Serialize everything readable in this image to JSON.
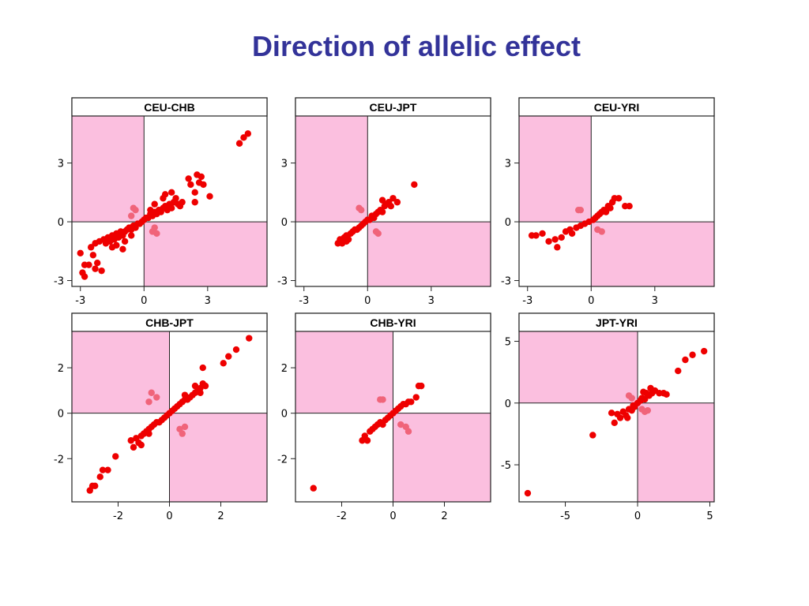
{
  "slide": {
    "title": "Direction of allelic effect",
    "title_color": "#333399"
  },
  "style": {
    "point_color": "#ee0000",
    "outlier_color": "#f0647a",
    "quadrant_fill": "#fbbfdf",
    "frame_color": "#222222"
  },
  "chart_data": [
    {
      "type": "scatter",
      "title": "CEU-CHB",
      "xlim": [
        -3.4,
        5.8
      ],
      "ylim": [
        -3.3,
        5.4
      ],
      "xticks": [
        "-3",
        "0",
        "3"
      ],
      "yticks": [
        "-3",
        "0",
        "3"
      ],
      "x_tick_values": [
        -3,
        0,
        3
      ],
      "y_tick_values": [
        -3,
        0,
        3
      ],
      "shaded_quadrants": [
        "top-left",
        "bottom-right"
      ],
      "points": [
        [
          -3.0,
          -1.6
        ],
        [
          -2.9,
          -2.6
        ],
        [
          -2.8,
          -2.2
        ],
        [
          -2.8,
          -2.8
        ],
        [
          -2.6,
          -2.2
        ],
        [
          -2.5,
          -1.3
        ],
        [
          -2.4,
          -1.7
        ],
        [
          -2.3,
          -1.1
        ],
        [
          -2.3,
          -2.4
        ],
        [
          -2.2,
          -2.1
        ],
        [
          -2.1,
          -1.0
        ],
        [
          -2.0,
          -2.5
        ],
        [
          -1.9,
          -0.9
        ],
        [
          -1.8,
          -1.1
        ],
        [
          -1.7,
          -0.8
        ],
        [
          -1.6,
          -1.0
        ],
        [
          -1.5,
          -0.7
        ],
        [
          -1.4,
          -0.9
        ],
        [
          -1.3,
          -0.6
        ],
        [
          -1.2,
          -0.8
        ],
        [
          -1.1,
          -0.5
        ],
        [
          -1.0,
          -0.7
        ],
        [
          -0.9,
          -0.5
        ],
        [
          -0.8,
          -0.4
        ],
        [
          -0.7,
          -0.3
        ],
        [
          -0.6,
          -0.4
        ],
        [
          -0.5,
          -0.2
        ],
        [
          -0.4,
          -0.3
        ],
        [
          -0.3,
          -0.1
        ],
        [
          -0.2,
          -0.1
        ],
        [
          -0.1,
          0.0
        ],
        [
          0.0,
          0.1
        ],
        [
          0.1,
          0.2
        ],
        [
          0.2,
          0.2
        ],
        [
          0.3,
          0.4
        ],
        [
          0.4,
          0.3
        ],
        [
          0.5,
          0.5
        ],
        [
          0.6,
          0.4
        ],
        [
          0.7,
          0.6
        ],
        [
          0.8,
          0.5
        ],
        [
          0.9,
          0.7
        ],
        [
          1.0,
          0.8
        ],
        [
          1.1,
          0.6
        ],
        [
          1.2,
          0.9
        ],
        [
          1.3,
          0.7
        ],
        [
          1.4,
          1.0
        ],
        [
          1.5,
          1.2
        ],
        [
          1.6,
          0.9
        ],
        [
          1.7,
          0.8
        ],
        [
          1.8,
          1.0
        ],
        [
          2.1,
          2.2
        ],
        [
          2.2,
          1.9
        ],
        [
          2.4,
          1.5
        ],
        [
          2.5,
          2.4
        ],
        [
          2.6,
          2.0
        ],
        [
          2.7,
          2.3
        ],
        [
          2.8,
          1.9
        ],
        [
          3.1,
          1.3
        ],
        [
          4.5,
          4.0
        ],
        [
          4.7,
          4.3
        ],
        [
          4.9,
          4.5
        ],
        [
          -1.3,
          -1.2
        ],
        [
          -0.9,
          -1.0
        ],
        [
          1.0,
          1.4
        ],
        [
          0.5,
          0.9
        ],
        [
          -1.5,
          -1.3
        ],
        [
          -1.0,
          -1.4
        ],
        [
          -0.6,
          -0.7
        ],
        [
          0.3,
          0.6
        ],
        [
          0.9,
          1.2
        ],
        [
          1.3,
          1.5
        ],
        [
          2.4,
          1.0
        ]
      ],
      "outliers": [
        [
          -0.5,
          0.7
        ],
        [
          -0.4,
          0.6
        ],
        [
          -0.6,
          0.3
        ],
        [
          0.4,
          -0.5
        ],
        [
          0.6,
          -0.6
        ],
        [
          0.5,
          -0.3
        ]
      ]
    },
    {
      "type": "scatter",
      "title": "CEU-JPT",
      "xlim": [
        -3.4,
        5.8
      ],
      "ylim": [
        -3.3,
        5.4
      ],
      "xticks": [
        "-3",
        "0",
        "3"
      ],
      "yticks": [
        "-3",
        "0",
        "3"
      ],
      "x_tick_values": [
        -3,
        0,
        3
      ],
      "y_tick_values": [
        -3,
        0,
        3
      ],
      "shaded_quadrants": [
        "top-left",
        "bottom-right"
      ],
      "points": [
        [
          -1.4,
          -1.1
        ],
        [
          -1.3,
          -0.9
        ],
        [
          -1.2,
          -1.1
        ],
        [
          -1.1,
          -0.8
        ],
        [
          -1.0,
          -0.7
        ],
        [
          -0.9,
          -0.9
        ],
        [
          -0.8,
          -0.6
        ],
        [
          -0.7,
          -0.5
        ],
        [
          -0.6,
          -0.4
        ],
        [
          -0.5,
          -0.4
        ],
        [
          -0.4,
          -0.3
        ],
        [
          -0.3,
          -0.2
        ],
        [
          -0.2,
          -0.1
        ],
        [
          -0.1,
          0.0
        ],
        [
          0.0,
          0.1
        ],
        [
          0.1,
          0.1
        ],
        [
          0.2,
          0.3
        ],
        [
          0.3,
          0.2
        ],
        [
          0.4,
          0.4
        ],
        [
          0.5,
          0.5
        ],
        [
          0.6,
          0.6
        ],
        [
          0.7,
          0.5
        ],
        [
          0.8,
          0.8
        ],
        [
          0.9,
          0.9
        ],
        [
          1.0,
          1.0
        ],
        [
          1.1,
          0.8
        ],
        [
          1.2,
          1.2
        ],
        [
          1.4,
          1.0
        ],
        [
          2.2,
          1.9
        ],
        [
          -1.0,
          -1.0
        ],
        [
          0.7,
          1.1
        ]
      ],
      "outliers": [
        [
          -0.4,
          0.7
        ],
        [
          -0.3,
          0.6
        ],
        [
          0.4,
          -0.5
        ],
        [
          0.5,
          -0.6
        ]
      ]
    },
    {
      "type": "scatter",
      "title": "CEU-YRI",
      "xlim": [
        -3.4,
        5.8
      ],
      "ylim": [
        -3.3,
        5.4
      ],
      "xticks": [
        "-3",
        "0",
        "3"
      ],
      "yticks": [
        "-3",
        "0",
        "3"
      ],
      "x_tick_values": [
        -3,
        0,
        3
      ],
      "y_tick_values": [
        -3,
        0,
        3
      ],
      "shaded_quadrants": [
        "top-left",
        "bottom-right"
      ],
      "points": [
        [
          -2.8,
          -0.7
        ],
        [
          -2.6,
          -0.7
        ],
        [
          -2.3,
          -0.6
        ],
        [
          -2.0,
          -1.0
        ],
        [
          -1.7,
          -0.9
        ],
        [
          -1.6,
          -1.3
        ],
        [
          -1.4,
          -0.8
        ],
        [
          -1.2,
          -0.5
        ],
        [
          -1.0,
          -0.4
        ],
        [
          -0.9,
          -0.6
        ],
        [
          -0.7,
          -0.3
        ],
        [
          -0.5,
          -0.2
        ],
        [
          -0.3,
          -0.1
        ],
        [
          -0.1,
          0.0
        ],
        [
          0.1,
          0.1
        ],
        [
          0.2,
          0.2
        ],
        [
          0.3,
          0.3
        ],
        [
          0.4,
          0.4
        ],
        [
          0.5,
          0.5
        ],
        [
          0.6,
          0.6
        ],
        [
          0.7,
          0.5
        ],
        [
          0.8,
          0.8
        ],
        [
          0.9,
          0.7
        ],
        [
          1.0,
          1.0
        ],
        [
          1.1,
          1.2
        ],
        [
          1.3,
          1.2
        ],
        [
          1.6,
          0.8
        ],
        [
          1.8,
          0.8
        ]
      ],
      "outliers": [
        [
          -0.6,
          0.6
        ],
        [
          -0.5,
          0.6
        ],
        [
          0.3,
          -0.4
        ],
        [
          0.5,
          -0.5
        ]
      ]
    },
    {
      "type": "scatter",
      "title": "CHB-JPT",
      "xlim": [
        -3.8,
        3.8
      ],
      "ylim": [
        -3.9,
        3.6
      ],
      "xticks": [
        "-2",
        "0",
        "2"
      ],
      "yticks": [
        "-2",
        "0",
        "2"
      ],
      "x_tick_values": [
        -2,
        0,
        2
      ],
      "y_tick_values": [
        -2,
        0,
        2
      ],
      "shaded_quadrants": [
        "top-left",
        "bottom-right"
      ],
      "points": [
        [
          -3.1,
          -3.4
        ],
        [
          -3.0,
          -3.2
        ],
        [
          -2.9,
          -3.2
        ],
        [
          -2.7,
          -2.8
        ],
        [
          -2.6,
          -2.5
        ],
        [
          -2.4,
          -2.5
        ],
        [
          -2.1,
          -1.9
        ],
        [
          -1.5,
          -1.2
        ],
        [
          -1.4,
          -1.5
        ],
        [
          -1.3,
          -1.1
        ],
        [
          -1.2,
          -1.3
        ],
        [
          -1.1,
          -1.0
        ],
        [
          -1.0,
          -0.9
        ],
        [
          -0.9,
          -0.8
        ],
        [
          -0.8,
          -0.7
        ],
        [
          -0.7,
          -0.6
        ],
        [
          -0.6,
          -0.5
        ],
        [
          -0.5,
          -0.4
        ],
        [
          -0.4,
          -0.4
        ],
        [
          -0.3,
          -0.3
        ],
        [
          -0.2,
          -0.2
        ],
        [
          -0.1,
          -0.1
        ],
        [
          0.0,
          0.0
        ],
        [
          0.1,
          0.1
        ],
        [
          0.2,
          0.2
        ],
        [
          0.3,
          0.3
        ],
        [
          0.4,
          0.4
        ],
        [
          0.5,
          0.5
        ],
        [
          0.6,
          0.6
        ],
        [
          0.7,
          0.6
        ],
        [
          0.8,
          0.7
        ],
        [
          0.9,
          0.8
        ],
        [
          1.0,
          0.9
        ],
        [
          1.1,
          1.0
        ],
        [
          1.2,
          1.1
        ],
        [
          1.3,
          1.3
        ],
        [
          1.4,
          1.2
        ],
        [
          1.3,
          2.0
        ],
        [
          2.1,
          2.2
        ],
        [
          2.3,
          2.5
        ],
        [
          2.6,
          2.8
        ],
        [
          3.1,
          3.3
        ],
        [
          -1.1,
          -1.4
        ],
        [
          -0.8,
          -0.9
        ],
        [
          0.6,
          0.8
        ],
        [
          1.0,
          1.2
        ],
        [
          1.2,
          0.9
        ]
      ],
      "outliers": [
        [
          -0.7,
          0.9
        ],
        [
          -0.5,
          0.7
        ],
        [
          -0.8,
          0.5
        ],
        [
          0.4,
          -0.7
        ],
        [
          0.6,
          -0.6
        ],
        [
          0.5,
          -0.9
        ]
      ]
    },
    {
      "type": "scatter",
      "title": "CHB-YRI",
      "xlim": [
        -3.8,
        3.8
      ],
      "ylim": [
        -3.9,
        3.6
      ],
      "xticks": [
        "-2",
        "0",
        "2"
      ],
      "yticks": [
        "-2",
        "0",
        "2"
      ],
      "x_tick_values": [
        -2,
        0,
        2
      ],
      "y_tick_values": [
        -2,
        0,
        2
      ],
      "shaded_quadrants": [
        "top-left",
        "bottom-right"
      ],
      "points": [
        [
          -3.1,
          -3.3
        ],
        [
          -1.2,
          -1.2
        ],
        [
          -1.1,
          -1.0
        ],
        [
          -1.0,
          -1.2
        ],
        [
          -0.9,
          -0.8
        ],
        [
          -0.8,
          -0.7
        ],
        [
          -0.7,
          -0.6
        ],
        [
          -0.6,
          -0.5
        ],
        [
          -0.5,
          -0.4
        ],
        [
          -0.4,
          -0.5
        ],
        [
          -0.3,
          -0.3
        ],
        [
          -0.2,
          -0.2
        ],
        [
          -0.1,
          -0.1
        ],
        [
          0.0,
          0.0
        ],
        [
          0.1,
          0.1
        ],
        [
          0.2,
          0.2
        ],
        [
          0.3,
          0.3
        ],
        [
          0.4,
          0.4
        ],
        [
          0.5,
          0.4
        ],
        [
          0.6,
          0.5
        ],
        [
          0.7,
          0.5
        ],
        [
          0.9,
          0.7
        ],
        [
          1.0,
          1.2
        ],
        [
          1.1,
          1.2
        ]
      ],
      "outliers": [
        [
          -0.5,
          0.6
        ],
        [
          -0.4,
          0.6
        ],
        [
          0.3,
          -0.5
        ],
        [
          0.5,
          -0.6
        ],
        [
          0.6,
          -0.8
        ]
      ]
    },
    {
      "type": "scatter",
      "title": "JPT-YRI",
      "xlim": [
        -8.2,
        5.3
      ],
      "ylim": [
        -8.0,
        5.8
      ],
      "xticks": [
        "-5",
        "0",
        "5"
      ],
      "yticks": [
        "-5",
        "0",
        "5"
      ],
      "x_tick_values": [
        -5,
        0,
        5
      ],
      "y_tick_values": [
        -5,
        0,
        5
      ],
      "shaded_quadrants": [
        "top-left",
        "bottom-right"
      ],
      "points": [
        [
          -7.6,
          -7.3
        ],
        [
          -3.1,
          -2.6
        ],
        [
          -1.8,
          -0.8
        ],
        [
          -1.6,
          -1.6
        ],
        [
          -1.4,
          -0.9
        ],
        [
          -1.2,
          -1.2
        ],
        [
          -1.0,
          -0.7
        ],
        [
          -0.8,
          -1.0
        ],
        [
          -0.6,
          -0.5
        ],
        [
          -0.4,
          -0.6
        ],
        [
          -0.3,
          -0.2
        ],
        [
          -0.2,
          -0.3
        ],
        [
          0.0,
          0.0
        ],
        [
          0.2,
          0.2
        ],
        [
          0.3,
          0.4
        ],
        [
          0.5,
          0.3
        ],
        [
          0.6,
          0.8
        ],
        [
          0.8,
          0.6
        ],
        [
          0.9,
          1.2
        ],
        [
          1.0,
          0.8
        ],
        [
          1.2,
          1.0
        ],
        [
          1.5,
          0.8
        ],
        [
          1.8,
          0.8
        ],
        [
          2.0,
          0.7
        ],
        [
          2.8,
          2.6
        ],
        [
          3.3,
          3.5
        ],
        [
          3.8,
          3.9
        ],
        [
          4.6,
          4.2
        ],
        [
          -0.7,
          -1.2
        ],
        [
          0.4,
          0.9
        ]
      ],
      "outliers": [
        [
          -0.6,
          0.6
        ],
        [
          -0.4,
          0.4
        ],
        [
          0.3,
          -0.5
        ],
        [
          0.5,
          -0.7
        ],
        [
          0.7,
          -0.6
        ]
      ]
    }
  ]
}
